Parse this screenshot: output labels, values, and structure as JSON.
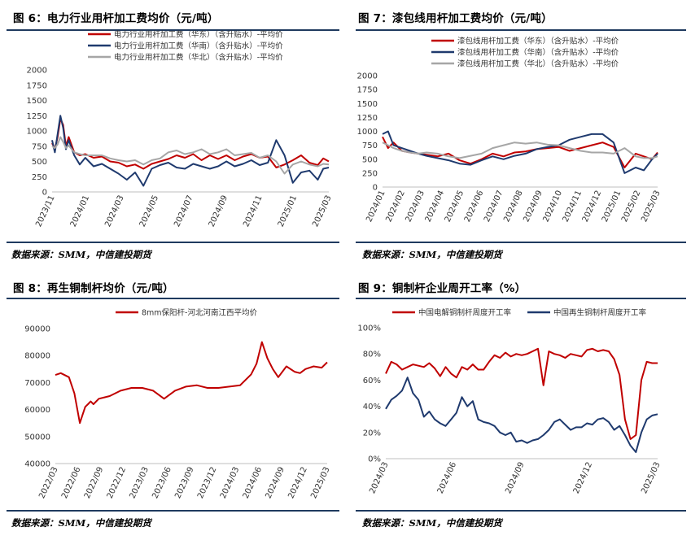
{
  "panels": [
    {
      "title": "图 6：电力行业用杆加工费均价（元/吨）",
      "source": "数据来源：SMM，中信建投期货"
    },
    {
      "title": "图 7：漆包线用杆加工费均价（元/吨）",
      "source": "数据来源：SMM，中信建投期货"
    },
    {
      "title": "图 8：再生铜制杆均价（元/吨）",
      "source": "数据来源：SMM，中信建投期货"
    },
    {
      "title": "图 9：铜制杆企业周开工率（%）",
      "source": "数据来源：SMM，中信建投期货"
    }
  ],
  "chart_data": [
    {
      "type": "line",
      "title": "",
      "yticks": [
        "0",
        "250",
        "500",
        "750",
        "1000",
        "1250",
        "1500",
        "1750",
        "2000"
      ],
      "ylim": [
        0,
        2000
      ],
      "xticks": [
        "2023/11",
        "2024/01",
        "2024/03",
        "2024/05",
        "2024/07",
        "2024/09",
        "2024/11",
        "2025/01",
        "2025/03"
      ],
      "legend_position": "top-left",
      "grid": false,
      "series": [
        {
          "name": "电力行业用杆加工费（华东）（含升贴水）-平均价",
          "color": "#c00000",
          "x": [
            0,
            0.01,
            0.02,
            0.03,
            0.04,
            0.05,
            0.06,
            0.08,
            0.1,
            0.12,
            0.15,
            0.18,
            0.21,
            0.24,
            0.27,
            0.3,
            0.33,
            0.36,
            0.39,
            0.42,
            0.45,
            0.48,
            0.51,
            0.54,
            0.57,
            0.6,
            0.63,
            0.66,
            0.69,
            0.72,
            0.75,
            0.78,
            0.81,
            0.84,
            0.87,
            0.9,
            0.93,
            0.96,
            0.98,
            1.0
          ],
          "y": [
            800,
            700,
            900,
            1200,
            1100,
            750,
            900,
            650,
            600,
            620,
            560,
            580,
            500,
            480,
            420,
            450,
            380,
            460,
            500,
            540,
            600,
            560,
            620,
            520,
            600,
            540,
            600,
            520,
            580,
            620,
            560,
            580,
            400,
            450,
            520,
            600,
            480,
            440,
            550,
            500
          ]
        },
        {
          "name": "电力行业用杆加工费（华南）（含升贴水）-平均价",
          "color": "#1f3a6e",
          "x": [
            0,
            0.01,
            0.02,
            0.03,
            0.04,
            0.05,
            0.06,
            0.08,
            0.1,
            0.12,
            0.15,
            0.18,
            0.21,
            0.24,
            0.27,
            0.3,
            0.33,
            0.36,
            0.39,
            0.42,
            0.45,
            0.48,
            0.51,
            0.54,
            0.57,
            0.6,
            0.63,
            0.66,
            0.69,
            0.72,
            0.75,
            0.78,
            0.81,
            0.84,
            0.87,
            0.9,
            0.93,
            0.96,
            0.98,
            1.0
          ],
          "y": [
            850,
            650,
            950,
            1250,
            1050,
            700,
            850,
            600,
            450,
            560,
            420,
            460,
            380,
            300,
            200,
            320,
            100,
            380,
            440,
            480,
            400,
            380,
            460,
            420,
            380,
            420,
            500,
            420,
            460,
            520,
            440,
            480,
            850,
            600,
            150,
            320,
            350,
            200,
            380,
            400
          ]
        },
        {
          "name": "电力行业用杆加工费（华北）（含升贴水）-平均价",
          "color": "#a6a6a6",
          "x": [
            0,
            0.01,
            0.02,
            0.03,
            0.04,
            0.05,
            0.06,
            0.08,
            0.1,
            0.12,
            0.15,
            0.18,
            0.21,
            0.24,
            0.27,
            0.3,
            0.33,
            0.36,
            0.39,
            0.42,
            0.45,
            0.48,
            0.51,
            0.54,
            0.57,
            0.6,
            0.63,
            0.66,
            0.69,
            0.72,
            0.75,
            0.78,
            0.81,
            0.84,
            0.87,
            0.9,
            0.93,
            0.96,
            0.98,
            1.0
          ],
          "y": [
            750,
            720,
            780,
            900,
            820,
            720,
            760,
            650,
            620,
            600,
            600,
            600,
            550,
            520,
            500,
            520,
            450,
            520,
            550,
            650,
            680,
            620,
            650,
            700,
            620,
            650,
            700,
            600,
            620,
            640,
            560,
            600,
            500,
            300,
            450,
            500,
            450,
            420,
            460,
            450
          ]
        }
      ]
    },
    {
      "type": "line",
      "title": "",
      "yticks": [
        "0",
        "250",
        "500",
        "750",
        "1000",
        "1250",
        "1500",
        "1750",
        "2000"
      ],
      "ylim": [
        0,
        2000
      ],
      "xticks": [
        "2024/01",
        "2024/02",
        "2024/03",
        "2024/04",
        "2024/05",
        "2024/06",
        "2024/07",
        "2024/08",
        "2024/09",
        "2024/10",
        "2024/11",
        "2024/12",
        "2025/01",
        "2025/02",
        "2025/03"
      ],
      "legend_position": "top-center",
      "grid": false,
      "series": [
        {
          "name": "漆包线用杆加工费（华东）（含升贴水）-平均价",
          "color": "#c00000",
          "x": [
            0,
            0.02,
            0.04,
            0.07,
            0.1,
            0.13,
            0.16,
            0.2,
            0.24,
            0.28,
            0.32,
            0.36,
            0.4,
            0.44,
            0.48,
            0.52,
            0.56,
            0.6,
            0.64,
            0.68,
            0.72,
            0.76,
            0.8,
            0.84,
            0.88,
            0.92,
            0.95,
            0.98,
            1.0
          ],
          "y": [
            900,
            700,
            800,
            650,
            620,
            600,
            580,
            550,
            600,
            480,
            420,
            500,
            600,
            550,
            620,
            640,
            680,
            700,
            720,
            650,
            700,
            750,
            800,
            720,
            350,
            600,
            550,
            500,
            620
          ]
        },
        {
          "name": "漆包线用杆加工费（华南）（含升贴水）-平均价",
          "color": "#1f3a6e",
          "x": [
            0,
            0.02,
            0.04,
            0.07,
            0.1,
            0.13,
            0.16,
            0.2,
            0.24,
            0.28,
            0.32,
            0.36,
            0.4,
            0.44,
            0.48,
            0.52,
            0.56,
            0.6,
            0.64,
            0.68,
            0.72,
            0.76,
            0.8,
            0.84,
            0.88,
            0.92,
            0.95,
            0.98,
            1.0
          ],
          "y": [
            950,
            1000,
            750,
            700,
            650,
            600,
            560,
            520,
            480,
            420,
            400,
            480,
            550,
            500,
            560,
            600,
            680,
            720,
            750,
            850,
            900,
            950,
            950,
            800,
            250,
            350,
            300,
            500,
            600
          ]
        },
        {
          "name": "漆包线用杆加工费（华北）（含升贴水）-平均价",
          "color": "#a6a6a6",
          "x": [
            0,
            0.02,
            0.04,
            0.07,
            0.1,
            0.13,
            0.16,
            0.2,
            0.24,
            0.28,
            0.32,
            0.36,
            0.4,
            0.44,
            0.48,
            0.52,
            0.56,
            0.6,
            0.64,
            0.68,
            0.72,
            0.76,
            0.8,
            0.84,
            0.88,
            0.92,
            0.95,
            0.98,
            1.0
          ],
          "y": [
            800,
            750,
            700,
            650,
            620,
            600,
            620,
            600,
            550,
            520,
            560,
            600,
            700,
            750,
            800,
            780,
            800,
            760,
            750,
            700,
            650,
            620,
            620,
            600,
            700,
            550,
            520,
            520,
            550
          ]
        }
      ]
    },
    {
      "type": "line",
      "title": "",
      "yticks": [
        "40000",
        "50000",
        "60000",
        "70000",
        "80000",
        "90000"
      ],
      "ylim": [
        40000,
        90000
      ],
      "xticks": [
        "2022/03",
        "2022/06",
        "2022/09",
        "2022/12",
        "2023/03",
        "2023/06",
        "2023/09",
        "2023/12",
        "2024/03",
        "2024/06",
        "2024/09",
        "2024/12",
        "2025/03"
      ],
      "legend_position": "top-center",
      "grid": false,
      "series": [
        {
          "name": "8mm保阳杆-河北河南江西平均价",
          "color": "#c00000",
          "x": [
            0,
            0.02,
            0.05,
            0.07,
            0.09,
            0.1,
            0.11,
            0.12,
            0.13,
            0.14,
            0.16,
            0.2,
            0.24,
            0.28,
            0.32,
            0.36,
            0.4,
            0.44,
            0.48,
            0.52,
            0.56,
            0.6,
            0.64,
            0.68,
            0.72,
            0.74,
            0.76,
            0.78,
            0.8,
            0.82,
            0.85,
            0.88,
            0.9,
            0.92,
            0.95,
            0.98,
            1.0
          ],
          "y": [
            72800,
            73500,
            72000,
            66000,
            55000,
            58000,
            61000,
            62000,
            63000,
            62000,
            64000,
            65000,
            67000,
            68000,
            68000,
            67000,
            64000,
            67000,
            68500,
            69000,
            68000,
            68000,
            68500,
            69000,
            73000,
            77000,
            85000,
            79000,
            75000,
            72000,
            76000,
            74000,
            73500,
            75000,
            76000,
            75500,
            77500
          ]
        }
      ]
    },
    {
      "type": "line",
      "title": "",
      "yticks": [
        "0%",
        "20%",
        "40%",
        "60%",
        "80%",
        "100%"
      ],
      "ylim": [
        0,
        100
      ],
      "xticks": [
        "2024/03",
        "2024/06",
        "2024/09",
        "2024/12",
        "2025/03"
      ],
      "legend_position": "top-center",
      "grid": false,
      "series": [
        {
          "name": "中国电解铜制杆周度开工率",
          "color": "#c00000",
          "x": [
            0,
            0.02,
            0.04,
            0.06,
            0.08,
            0.1,
            0.12,
            0.14,
            0.16,
            0.18,
            0.2,
            0.22,
            0.24,
            0.26,
            0.28,
            0.3,
            0.32,
            0.34,
            0.36,
            0.38,
            0.4,
            0.42,
            0.44,
            0.46,
            0.48,
            0.5,
            0.52,
            0.54,
            0.56,
            0.58,
            0.6,
            0.62,
            0.64,
            0.66,
            0.68,
            0.7,
            0.72,
            0.74,
            0.76,
            0.78,
            0.8,
            0.82,
            0.84,
            0.86,
            0.88,
            0.9,
            0.92,
            0.94,
            0.96,
            0.98,
            1.0
          ],
          "y": [
            65,
            74,
            72,
            68,
            70,
            72,
            71,
            70,
            73,
            69,
            63,
            70,
            65,
            62,
            70,
            68,
            72,
            68,
            68,
            74,
            79,
            77,
            81,
            78,
            80,
            79,
            80,
            82,
            84,
            56,
            82,
            80,
            79,
            77,
            80,
            79,
            78,
            83,
            84,
            82,
            83,
            82,
            76,
            64,
            30,
            15,
            18,
            60,
            74,
            73,
            73
          ]
        },
        {
          "name": "中国再生铜制杆周度开工率",
          "color": "#1f3a6e",
          "x": [
            0,
            0.02,
            0.04,
            0.06,
            0.08,
            0.1,
            0.12,
            0.14,
            0.16,
            0.18,
            0.2,
            0.22,
            0.24,
            0.26,
            0.28,
            0.3,
            0.32,
            0.34,
            0.36,
            0.38,
            0.4,
            0.42,
            0.44,
            0.46,
            0.48,
            0.5,
            0.52,
            0.54,
            0.56,
            0.58,
            0.6,
            0.62,
            0.64,
            0.66,
            0.68,
            0.7,
            0.72,
            0.74,
            0.76,
            0.78,
            0.8,
            0.82,
            0.84,
            0.86,
            0.88,
            0.9,
            0.92,
            0.94,
            0.96,
            0.98,
            1.0
          ],
          "y": [
            38,
            45,
            48,
            52,
            62,
            50,
            45,
            32,
            36,
            30,
            27,
            25,
            30,
            35,
            47,
            40,
            44,
            30,
            28,
            27,
            25,
            20,
            18,
            20,
            13,
            14,
            12,
            14,
            15,
            18,
            22,
            28,
            30,
            26,
            22,
            24,
            24,
            27,
            26,
            30,
            31,
            28,
            22,
            25,
            18,
            10,
            5,
            20,
            30,
            33,
            34
          ]
        }
      ]
    }
  ]
}
